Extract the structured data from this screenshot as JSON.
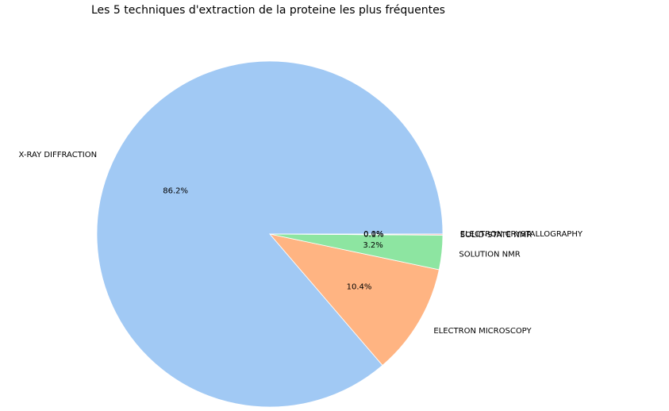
{
  "chart_data": {
    "type": "pie",
    "title": "Les 5 techniques d'extraction de la proteine les plus fréquentes",
    "categories": [
      "X-RAY DIFFRACTION",
      "ELECTRON MICROSCOPY",
      "SOLUTION NMR",
      "SOLID-STATE NMR",
      "ELECTRON CRYSTALLOGRAPHY"
    ],
    "values": [
      86.2,
      10.4,
      3.2,
      0.1,
      0.0
    ],
    "percent_labels": [
      "86.2%",
      "10.4%",
      "3.2%",
      "0.1%",
      "0.0%"
    ],
    "colors": [
      "#a1c9f4",
      "#ffb482",
      "#8de5a1",
      "#ff9f9b",
      "#d0bbff"
    ],
    "start_angle": 0,
    "direction": "counterclockwise",
    "autopct": "%1.1f%%"
  }
}
